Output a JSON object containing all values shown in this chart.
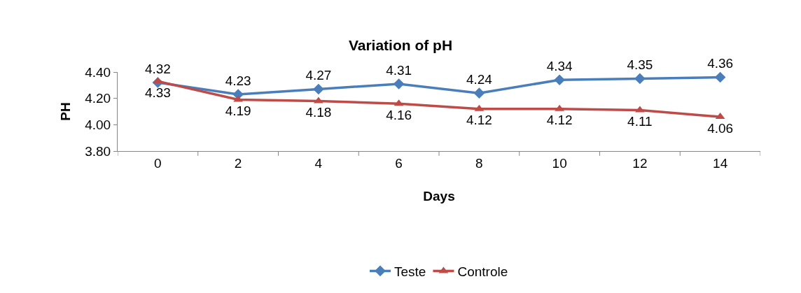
{
  "chart_data": {
    "type": "line",
    "title": "Variation of pH",
    "xlabel": "Days",
    "ylabel": "PH",
    "categories": [
      "0",
      "2",
      "4",
      "6",
      "8",
      "10",
      "12",
      "14"
    ],
    "series": [
      {
        "name": "Teste",
        "color": "#4a7ebb",
        "marker": "diamond",
        "values": [
          4.32,
          4.23,
          4.27,
          4.31,
          4.24,
          4.34,
          4.35,
          4.36
        ]
      },
      {
        "name": "Controle",
        "color": "#be4b48",
        "marker": "triangle",
        "values": [
          4.33,
          4.19,
          4.18,
          4.16,
          4.12,
          4.12,
          4.11,
          4.06
        ]
      }
    ],
    "ylim": [
      3.8,
      4.4
    ],
    "yticks": [
      {
        "value": 3.8,
        "label": "3.80"
      },
      {
        "value": 4.0,
        "label": "4.00"
      },
      {
        "value": 4.2,
        "label": "4.20"
      },
      {
        "value": 4.4,
        "label": "4.40"
      }
    ],
    "data_labels": true,
    "legend": "bottom",
    "line_style": "solid"
  }
}
